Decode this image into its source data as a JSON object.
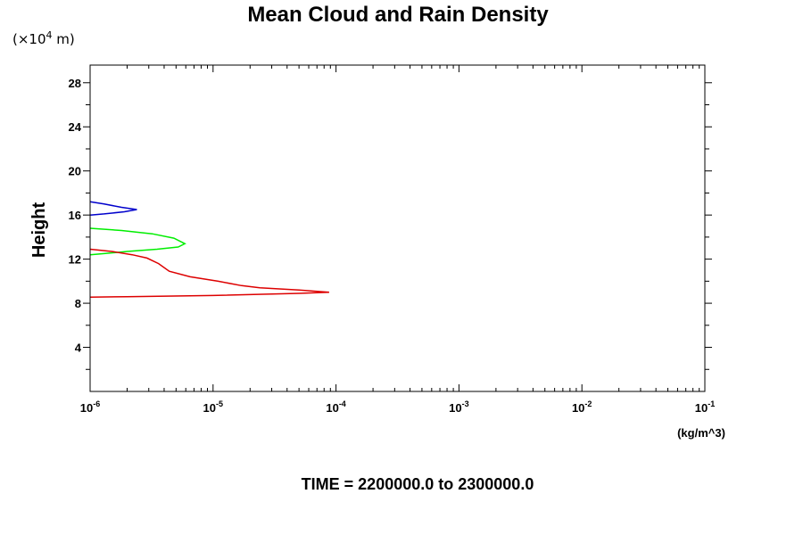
{
  "chart_data": {
    "type": "line",
    "title": "Mean Cloud and Rain Density",
    "y_unit": {
      "prefix": "(×10",
      "exp": "4",
      "suffix": " m)"
    },
    "ylabel": "Height",
    "xunit": "(kg/m^3)",
    "footer": "TIME = 2200000.0 to 2300000.0",
    "xscale": "log",
    "xlim": [
      1e-06,
      0.1
    ],
    "ylim": [
      0,
      29.6
    ],
    "y_ticks": [
      4,
      8,
      12,
      16,
      20,
      24,
      28
    ],
    "x_ticks": [
      {
        "base": "10",
        "exp": "-6",
        "value": 1e-06
      },
      {
        "base": "10",
        "exp": "-5",
        "value": 1e-05
      },
      {
        "base": "10",
        "exp": "-4",
        "value": 0.0001
      },
      {
        "base": "10",
        "exp": "-3",
        "value": 0.001
      },
      {
        "base": "10",
        "exp": "-2",
        "value": 0.01
      },
      {
        "base": "10",
        "exp": "-1",
        "value": 0.1
      }
    ],
    "series": [
      {
        "color": "#0000cc",
        "points": [
          [
            1e-06,
            17.2
          ],
          [
            1.3e-06,
            17.0
          ],
          [
            1.8e-06,
            16.7
          ],
          [
            2.4e-06,
            16.5
          ],
          [
            1.9e-06,
            16.3
          ],
          [
            1.3e-06,
            16.1
          ],
          [
            1e-06,
            16.0
          ]
        ]
      },
      {
        "color": "#00ee00",
        "points": [
          [
            1e-06,
            14.8
          ],
          [
            1.8e-06,
            14.6
          ],
          [
            3.2e-06,
            14.3
          ],
          [
            4.8e-06,
            13.9
          ],
          [
            5.9e-06,
            13.4
          ],
          [
            5.2e-06,
            13.1
          ],
          [
            3.5e-06,
            12.9
          ],
          [
            2e-06,
            12.7
          ],
          [
            1.3e-06,
            12.5
          ],
          [
            1e-06,
            12.4
          ]
        ]
      },
      {
        "color": "#dd0000",
        "points": [
          [
            1e-06,
            12.9
          ],
          [
            1.5e-06,
            12.7
          ],
          [
            2.2e-06,
            12.4
          ],
          [
            2.9e-06,
            12.1
          ],
          [
            3.6e-06,
            11.6
          ],
          [
            4.4e-06,
            10.9
          ],
          [
            6.5e-06,
            10.4
          ],
          [
            1.1e-05,
            10.0
          ],
          [
            1.7e-05,
            9.6
          ],
          [
            2.4e-05,
            9.4
          ],
          [
            5e-05,
            9.2
          ],
          [
            8.8e-05,
            9.0
          ],
          [
            5e-05,
            8.9
          ],
          [
            1e-05,
            8.7
          ],
          [
            2e-06,
            8.6
          ],
          [
            1e-06,
            8.55
          ]
        ]
      }
    ]
  }
}
